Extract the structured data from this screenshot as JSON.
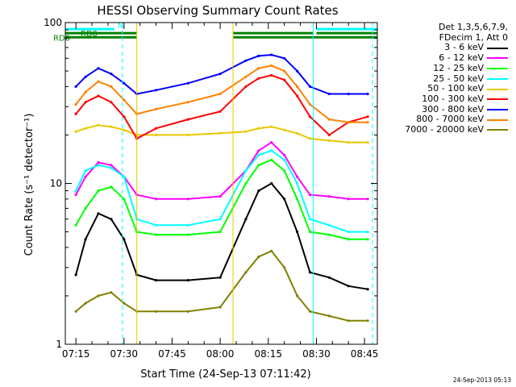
{
  "chart_data": {
    "type": "line",
    "title": "HESSI Observing Summary Count Rates",
    "xlabel": "Start Time (24-Sep-13 07:11:42)",
    "ylabel": "Count Rate (s⁻¹ detector⁻¹)",
    "y_scale": "log",
    "ylim": [
      1,
      100
    ],
    "xlim": [
      "07:11:42",
      "08:49:00"
    ],
    "x_ticks": [
      "07:15",
      "07:30",
      "07:45",
      "08:00",
      "08:15",
      "08:30",
      "08:45"
    ],
    "y_ticks": [
      "1",
      "10",
      "100"
    ],
    "grid": false,
    "legend_header": [
      "Det 1,3,5,6,7,9,",
      "FDecim 1, Att 0"
    ],
    "series": [
      {
        "name": "3 - 6 keV",
        "color": "#000000",
        "x": [
          "07:15",
          "07:18",
          "07:22",
          "07:26",
          "07:30",
          "07:34",
          "07:40",
          "07:50",
          "08:00",
          "08:08",
          "08:12",
          "08:16",
          "08:20",
          "08:24",
          "08:28",
          "08:34",
          "08:40",
          "08:46"
        ],
        "y": [
          2.7,
          4.5,
          6.5,
          6.0,
          4.5,
          2.7,
          2.5,
          2.5,
          2.6,
          6.0,
          9.0,
          10.0,
          8.0,
          5.0,
          2.8,
          2.6,
          2.3,
          2.2
        ]
      },
      {
        "name": "6 - 12 keV",
        "color": "#ff00ff",
        "x": [
          "07:15",
          "07:18",
          "07:22",
          "07:26",
          "07:30",
          "07:34",
          "07:40",
          "07:50",
          "08:00",
          "08:08",
          "08:12",
          "08:16",
          "08:20",
          "08:24",
          "08:28",
          "08:34",
          "08:40",
          "08:46"
        ],
        "y": [
          8.5,
          11.0,
          13.5,
          13.0,
          11.0,
          8.5,
          8.0,
          8.0,
          8.3,
          12.0,
          16.0,
          18.0,
          15.0,
          11.0,
          8.5,
          8.3,
          8.0,
          8.0
        ]
      },
      {
        "name": "12 - 25 keV",
        "color": "#00ff00",
        "x": [
          "07:15",
          "07:18",
          "07:22",
          "07:26",
          "07:30",
          "07:34",
          "07:40",
          "07:50",
          "08:00",
          "08:08",
          "08:12",
          "08:16",
          "08:20",
          "08:24",
          "08:28",
          "08:34",
          "08:40",
          "08:46"
        ],
        "y": [
          5.5,
          7.0,
          9.0,
          9.5,
          8.0,
          5.0,
          4.8,
          4.8,
          5.0,
          10.0,
          13.0,
          14.0,
          12.0,
          8.0,
          5.0,
          4.8,
          4.5,
          4.5
        ]
      },
      {
        "name": "25 - 50 keV",
        "color": "#00ffff",
        "x": [
          "07:15",
          "07:18",
          "07:22",
          "07:26",
          "07:30",
          "07:34",
          "07:40",
          "07:50",
          "08:00",
          "08:08",
          "08:12",
          "08:16",
          "08:20",
          "08:24",
          "08:28",
          "08:34",
          "08:40",
          "08:46"
        ],
        "y": [
          9.0,
          12.0,
          13.0,
          12.5,
          11.0,
          6.0,
          5.5,
          5.5,
          6.0,
          12.0,
          15.0,
          16.0,
          14.0,
          10.0,
          6.0,
          5.5,
          5.0,
          5.0
        ]
      },
      {
        "name": "50 - 100 keV",
        "color": "#e8c800",
        "x": [
          "07:15",
          "07:18",
          "07:22",
          "07:26",
          "07:30",
          "07:34",
          "07:40",
          "07:50",
          "08:00",
          "08:08",
          "08:12",
          "08:16",
          "08:20",
          "08:24",
          "08:28",
          "08:34",
          "08:40",
          "08:46"
        ],
        "y": [
          21.0,
          22.0,
          23.0,
          22.5,
          21.5,
          20.0,
          20.0,
          20.0,
          20.5,
          21.0,
          22.0,
          22.5,
          21.5,
          20.5,
          19.0,
          18.5,
          18.0,
          18.0
        ]
      },
      {
        "name": "100 - 300 keV",
        "color": "#ff0000",
        "x": [
          "07:15",
          "07:18",
          "07:22",
          "07:26",
          "07:30",
          "07:34",
          "07:40",
          "07:50",
          "08:00",
          "08:08",
          "08:12",
          "08:16",
          "08:20",
          "08:24",
          "08:28",
          "08:34",
          "08:40",
          "08:46"
        ],
        "y": [
          27.0,
          32.0,
          35.0,
          32.0,
          26.0,
          19.0,
          22.0,
          25.0,
          28.0,
          40.0,
          45.0,
          47.0,
          44.0,
          35.0,
          26.0,
          20.0,
          24.0,
          26.0
        ]
      },
      {
        "name": "300 - 800 keV",
        "color": "#0000ff",
        "x": [
          "07:15",
          "07:18",
          "07:22",
          "07:26",
          "07:30",
          "07:34",
          "07:40",
          "07:50",
          "08:00",
          "08:08",
          "08:12",
          "08:16",
          "08:20",
          "08:24",
          "08:28",
          "08:34",
          "08:40",
          "08:46"
        ],
        "y": [
          40.0,
          46.0,
          52.0,
          48.0,
          42.0,
          36.0,
          38.0,
          42.0,
          48.0,
          58.0,
          62.0,
          63.0,
          60.0,
          50.0,
          40.0,
          36.0,
          36.0,
          36.0
        ]
      },
      {
        "name": "800 - 7000 keV",
        "color": "#ff8000",
        "x": [
          "07:15",
          "07:18",
          "07:22",
          "07:26",
          "07:30",
          "07:34",
          "07:40",
          "07:50",
          "08:00",
          "08:08",
          "08:12",
          "08:16",
          "08:20",
          "08:24",
          "08:28",
          "08:34",
          "08:40",
          "08:46"
        ],
        "y": [
          31.0,
          37.0,
          43.0,
          40.0,
          33.0,
          27.0,
          29.0,
          32.0,
          36.0,
          46.0,
          52.0,
          54.0,
          50.0,
          40.0,
          31.0,
          25.0,
          24.0,
          24.0
        ]
      },
      {
        "name": "7000 - 20000 keV",
        "color": "#808000",
        "x": [
          "07:15",
          "07:18",
          "07:22",
          "07:26",
          "07:30",
          "07:34",
          "07:40",
          "07:50",
          "08:00",
          "08:08",
          "08:12",
          "08:16",
          "08:20",
          "08:24",
          "08:28",
          "08:34",
          "08:40",
          "08:46"
        ],
        "y": [
          1.6,
          1.8,
          2.0,
          2.1,
          1.8,
          1.6,
          1.6,
          1.6,
          1.7,
          2.8,
          3.5,
          3.8,
          3.0,
          2.0,
          1.6,
          1.5,
          1.4,
          1.4
        ]
      }
    ],
    "flag_bars": [
      {
        "label": "RD6",
        "color": "#008000",
        "y": 81,
        "segments": [
          [
            "07:11:42",
            "07:34:00"
          ],
          [
            "08:04:00",
            "08:49:00"
          ]
        ]
      },
      {
        "label": "RD0",
        "color": "#008000",
        "y": 86,
        "segments": [
          [
            "07:11:42",
            "07:34:00"
          ],
          [
            "08:04:00",
            "08:29:00"
          ],
          [
            "08:30:00",
            "08:49:00"
          ]
        ]
      },
      {
        "label": "N",
        "color": "#00ffff",
        "y": 91,
        "segments": [
          [
            "07:11:42",
            "07:27:00"
          ],
          [
            "08:30:00",
            "08:49:00"
          ]
        ]
      }
    ],
    "vertical_markers": [
      {
        "time": "07:11:42",
        "color": "#00ffff",
        "style": "solid"
      },
      {
        "time": "07:29:30",
        "color": "#00ffff",
        "style": "dashed"
      },
      {
        "time": "07:34:00",
        "color": "#e8c800",
        "style": "solid"
      },
      {
        "time": "08:04:00",
        "color": "#e8c800",
        "style": "solid"
      },
      {
        "time": "08:29:00",
        "color": "#00ffff",
        "style": "solid"
      },
      {
        "time": "08:47:30",
        "color": "#00ffff",
        "style": "dashed"
      }
    ]
  },
  "footer": {
    "timestamp": "24-Sep-2013 05:13"
  },
  "colors": {
    "axis": "#000000",
    "background": "#ffffff"
  }
}
